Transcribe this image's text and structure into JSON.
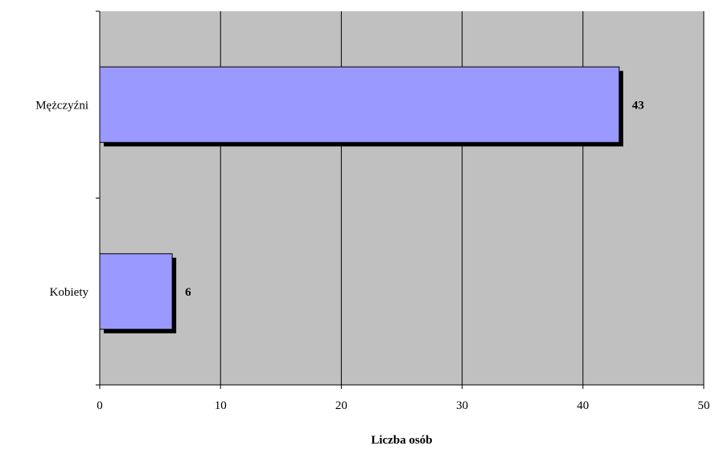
{
  "chart_data": {
    "type": "bar",
    "orientation": "horizontal",
    "categories": [
      "Mężczyźni",
      "Kobiety"
    ],
    "values": [
      43,
      6
    ],
    "xlabel": "Liczba osób",
    "ylabel": "",
    "xlim": [
      0,
      50
    ],
    "xticks": [
      0,
      10,
      20,
      30,
      40,
      50
    ],
    "grid": true,
    "legend": "none",
    "colors": {
      "plot_background": "#c0c0c0",
      "bar_fill": "#9999ff",
      "bar_shadow": "#000000",
      "gridline": "#000000"
    }
  }
}
